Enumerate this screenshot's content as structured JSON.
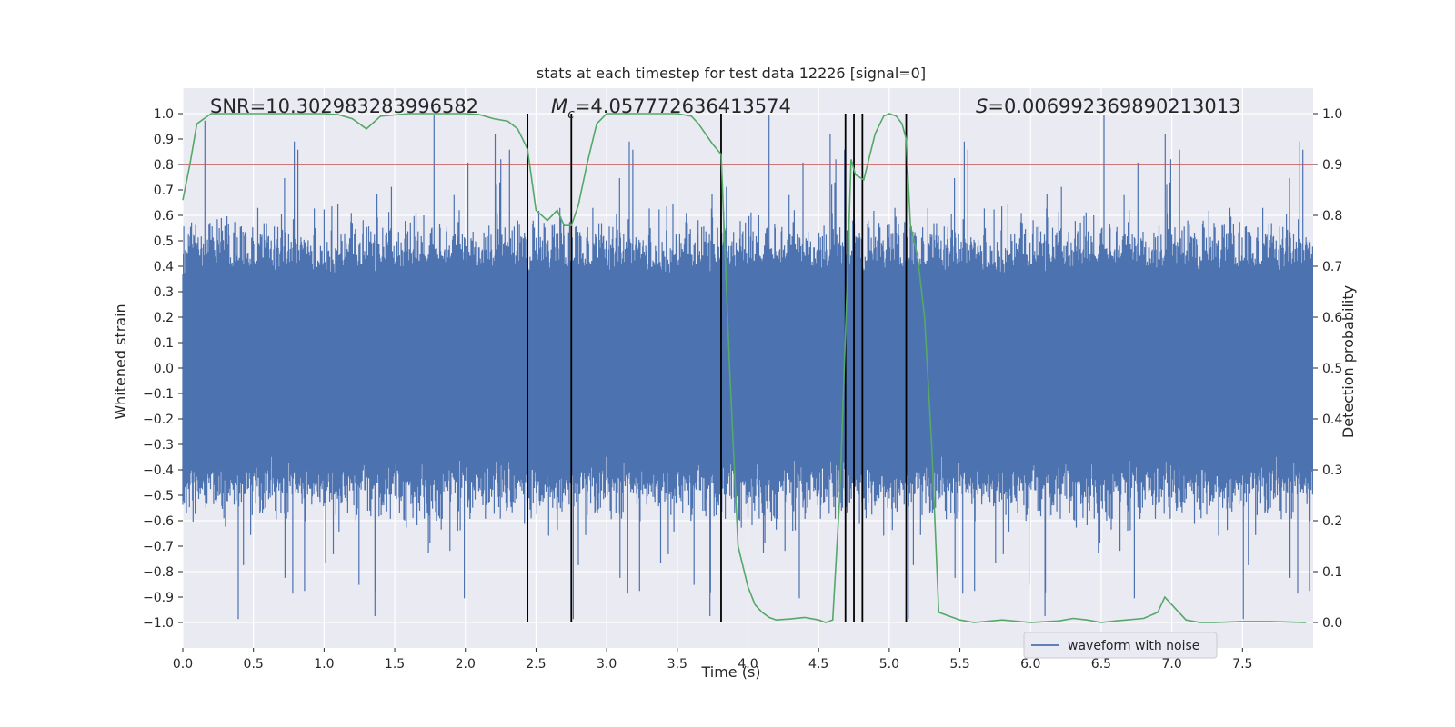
{
  "chart_data": {
    "type": "line",
    "title": "stats at each timestep for test data 12226 [signal=0]",
    "xlabel": "Time (s)",
    "ylabel_left": "Whitened strain",
    "ylabel_right": "Detection probability",
    "xlim": [
      0.0,
      8.0
    ],
    "ylim_left": [
      -1.1,
      1.1
    ],
    "ylim_right": [
      -0.05,
      1.05
    ],
    "xticks": [
      "0.0",
      "0.5",
      "1.0",
      "1.5",
      "2.0",
      "2.5",
      "3.0",
      "3.5",
      "4.0",
      "4.5",
      "5.0",
      "5.5",
      "6.0",
      "6.5",
      "7.0",
      "7.5"
    ],
    "yticks_left": [
      "1.0",
      "0.9",
      "0.8",
      "0.7",
      "0.6",
      "0.5",
      "0.4",
      "0.3",
      "0.2",
      "0.1",
      "0.0",
      "−0.1",
      "−0.2",
      "−0.3",
      "−0.4",
      "−0.5",
      "−0.6",
      "−0.7",
      "−0.8",
      "−0.9",
      "−1.0"
    ],
    "yticks_right": [
      "1.0",
      "0.9",
      "0.8",
      "0.7",
      "0.6",
      "0.5",
      "0.4",
      "0.3",
      "0.2",
      "0.1",
      "0.0"
    ],
    "grid": true,
    "legend": {
      "placement": "bottom-center-right",
      "entries": [
        {
          "label": "waveform with noise",
          "color": "#4c72b0"
        }
      ]
    },
    "annotations": {
      "snr": "SNR=10.302983283996582",
      "mc_symbol": "M",
      "mc_sub": "c",
      "mc_value": "=4.057772636413574",
      "s_symbol": "S",
      "s_value": "=0.006992369890213013"
    },
    "threshold": {
      "axis": "left",
      "y": 0.8,
      "color": "#c44e52"
    },
    "vertical_lines": [
      2.44,
      2.75,
      3.81,
      4.69,
      4.75,
      4.81,
      5.12
    ],
    "waveform": {
      "color": "#4c72b0",
      "description_free": true,
      "typical_amplitude": 0.4,
      "peak_amplitude": 1.0
    },
    "detection_probability": {
      "color": "#55a868",
      "x": [
        0.0,
        0.05,
        0.1,
        0.2,
        0.4,
        0.6,
        0.8,
        1.0,
        1.1,
        1.2,
        1.25,
        1.3,
        1.4,
        1.6,
        1.8,
        2.0,
        2.1,
        2.2,
        2.3,
        2.37,
        2.44,
        2.5,
        2.58,
        2.65,
        2.7,
        2.75,
        2.8,
        2.86,
        2.93,
        3.0,
        3.1,
        3.3,
        3.5,
        3.6,
        3.65,
        3.7,
        3.75,
        3.81,
        3.87,
        3.93,
        4.0,
        4.05,
        4.1,
        4.15,
        4.2,
        4.3,
        4.4,
        4.5,
        4.55,
        4.6,
        4.65,
        4.7,
        4.73,
        4.76,
        4.82,
        4.9,
        4.96,
        5.0,
        5.05,
        5.09,
        5.12,
        5.15,
        5.2,
        5.25,
        5.3,
        5.35,
        5.4,
        5.5,
        5.6,
        5.8,
        6.0,
        6.2,
        6.3,
        6.4,
        6.5,
        6.6,
        6.8,
        6.9,
        6.95,
        7.0,
        7.1,
        7.2,
        7.3,
        7.5,
        7.7,
        7.95
      ],
      "y": [
        0.83,
        0.9,
        0.98,
        1.0,
        1.0,
        1.0,
        1.0,
        1.0,
        0.998,
        0.99,
        0.98,
        0.97,
        0.995,
        1.0,
        1.0,
        1.0,
        0.998,
        0.99,
        0.985,
        0.97,
        0.93,
        0.81,
        0.79,
        0.81,
        0.78,
        0.78,
        0.82,
        0.9,
        0.98,
        1.0,
        1.0,
        1.0,
        1.0,
        0.995,
        0.98,
        0.96,
        0.94,
        0.92,
        0.5,
        0.15,
        0.07,
        0.035,
        0.02,
        0.01,
        0.005,
        0.007,
        0.01,
        0.005,
        0.0,
        0.005,
        0.25,
        0.65,
        0.91,
        0.88,
        0.87,
        0.96,
        0.995,
        1.0,
        0.995,
        0.98,
        0.95,
        0.78,
        0.72,
        0.6,
        0.35,
        0.02,
        0.015,
        0.005,
        0.0,
        0.005,
        0.0,
        0.003,
        0.008,
        0.005,
        0.0,
        0.003,
        0.008,
        0.02,
        0.05,
        0.035,
        0.005,
        0.0,
        0.0,
        0.002,
        0.002,
        0.0
      ]
    }
  }
}
